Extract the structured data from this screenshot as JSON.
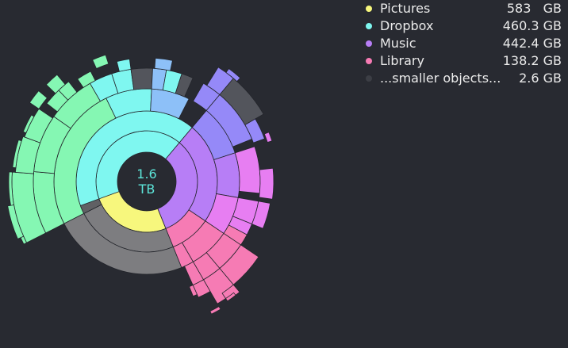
{
  "colors": {
    "background": "#282a31",
    "pictures": "#f7f77d",
    "dropbox": "#7ff7f0",
    "music": "#b77ef6",
    "library": "#f67bb4",
    "smaller": "#3c3e45",
    "center_text": "#5de6da"
  },
  "center": {
    "size_value": "1.6",
    "size_unit": "TB"
  },
  "legend": [
    {
      "name": "Pictures",
      "size": "583   GB",
      "color": "#f7f77d"
    },
    {
      "name": "Dropbox",
      "size": "460.3 GB",
      "color": "#7ff7f0"
    },
    {
      "name": "Music",
      "size": "442.4 GB",
      "color": "#b77ef6"
    },
    {
      "name": "Library",
      "size": "138.2 GB",
      "color": "#f67bb4"
    },
    {
      "name": "...smaller objects...",
      "size": "2.6 GB",
      "color": "#3c3e45"
    }
  ]
}
